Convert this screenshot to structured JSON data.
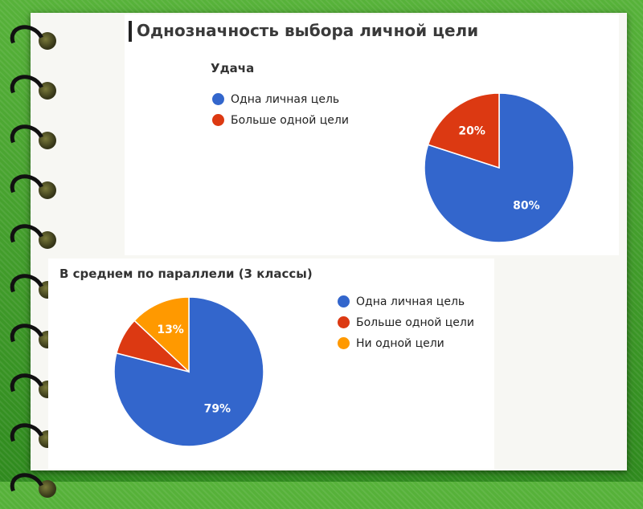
{
  "title": "Однозначность выбора личной цели",
  "colors": {
    "blue": "#3366cc",
    "red": "#dc3912",
    "orange": "#ff9900",
    "background": "#3f9b27"
  },
  "chart_data": [
    {
      "type": "pie",
      "title": "Удача",
      "categories": [
        "Одна личная цель",
        "Больше одной цели"
      ],
      "values": [
        80,
        20
      ],
      "labels": [
        "80%",
        "20%"
      ],
      "colors": [
        "#3366cc",
        "#dc3912"
      ],
      "legend": "left"
    },
    {
      "type": "pie",
      "title": "В среднем по параллели (3 классы)",
      "categories": [
        "Одна личная цель",
        "Больше одной цели",
        "Ни одной цели"
      ],
      "values": [
        79,
        8,
        13
      ],
      "labels": [
        "79%",
        "",
        "13%"
      ],
      "colors": [
        "#3366cc",
        "#dc3912",
        "#ff9900"
      ],
      "legend": "right"
    }
  ]
}
